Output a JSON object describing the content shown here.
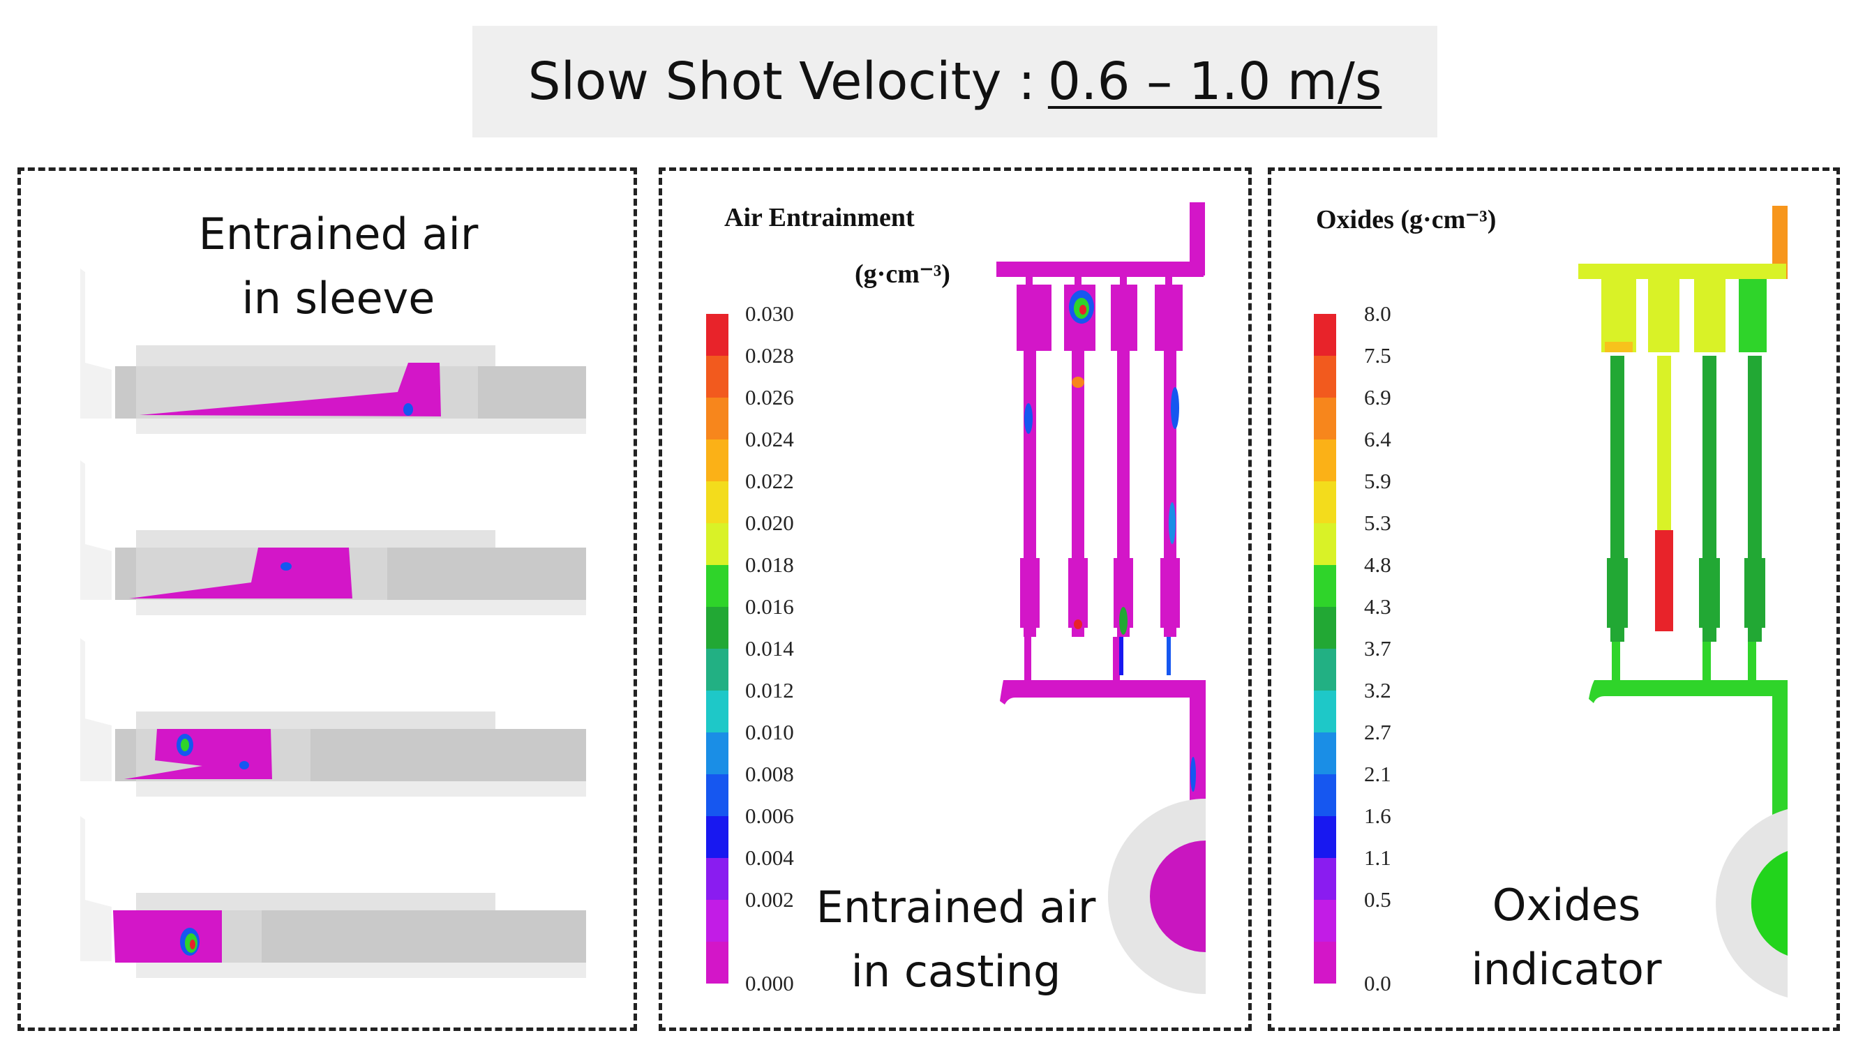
{
  "title": {
    "label": "Slow Shot Velocity :",
    "value": "0.6 – 1.0 m/s"
  },
  "panels": {
    "sleeve": {
      "caption_line1": "Entrained air",
      "caption_line2": "in sleeve",
      "stages": 4
    },
    "air": {
      "legend_title": "Air Entrainment",
      "legend_unit": "(g·cm⁻³)",
      "caption_line1": "Entrained air",
      "caption_line2": "in casting",
      "ticks": [
        "0.030",
        "0.028",
        "0.026",
        "0.024",
        "0.022",
        "0.020",
        "0.018",
        "0.016",
        "0.014",
        "0.012",
        "0.010",
        "0.008",
        "0.006",
        "0.004",
        "0.002",
        "0.000"
      ]
    },
    "oxides": {
      "legend_title": "Oxides  (g·cm⁻³)",
      "caption_line1": "Oxides",
      "caption_line2": "indicator",
      "ticks": [
        "8.0",
        "7.5",
        "6.9",
        "6.4",
        "5.9",
        "5.3",
        "4.8",
        "4.3",
        "3.7",
        "3.2",
        "2.7",
        "2.1",
        "1.6",
        "1.1",
        "0.5",
        "0.0"
      ]
    }
  },
  "colors": {
    "scale": [
      "#e8232a",
      "#f25a1e",
      "#f7861c",
      "#fbb117",
      "#f3dc1c",
      "#d9f227",
      "#2fd42a",
      "#22a834",
      "#22b083",
      "#1ec8c8",
      "#1a8ee6",
      "#1657f0",
      "#1818f0",
      "#8a1cf0",
      "#c21ce6",
      "#d316c8"
    ],
    "magenta": "#d316c8",
    "green": "#22d41c",
    "dark_green": "#22a834",
    "yellow": "#d9f227",
    "orange": "#f7961c",
    "red": "#e8232a",
    "title_bg": "#efefef",
    "panel_border": "#222222"
  }
}
